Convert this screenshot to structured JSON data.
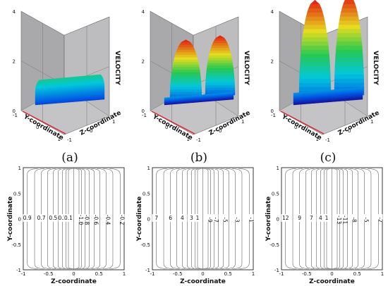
{
  "panels": [
    {
      "caption": "(a)",
      "surface": {
        "shape": "plateau",
        "peak": 1.0,
        "z_axis_label": "VELOCITY",
        "y_axis_label": "Y-coordinate",
        "x_axis_label": "Z-coordinate",
        "z_ticks": [
          "0",
          "2",
          "4"
        ],
        "y_ticks": [
          "-1",
          "0",
          "1"
        ],
        "x_ticks": [
          "-1",
          "0",
          "1"
        ]
      },
      "contour": {
        "y_label": "Y-coordinate",
        "x_label": "Z-coordinate",
        "x_ticks": [
          "-1",
          "-0.5",
          "0",
          "0.5",
          "1"
        ],
        "y_ticks": [
          "-1",
          "-0.5",
          "0",
          "0.5",
          "1"
        ],
        "labels": [
          "0.9",
          "0.7",
          "0.5",
          "0.3",
          "0.1",
          "-0.2",
          "-0.4",
          "-0.6",
          "-0.8",
          "-1.0"
        ]
      }
    },
    {
      "caption": "(b)",
      "surface": {
        "shape": "twin",
        "peak": 2.4,
        "z_axis_label": "VELOCITY",
        "y_axis_label": "Y-coordinate",
        "x_axis_label": "Z-coordinate",
        "z_ticks": [
          "0",
          "2",
          "4"
        ],
        "y_ticks": [
          "-1",
          "0",
          "1"
        ],
        "x_ticks": [
          "-1",
          "0",
          "1"
        ]
      },
      "contour": {
        "y_label": "Y-coordinate",
        "x_label": "Z-coordinate",
        "x_ticks": [
          "-1",
          "-0.5",
          "0",
          "0.5",
          "1"
        ],
        "y_ticks": [
          "-1",
          "-0.5",
          "0",
          "0.5",
          "1"
        ],
        "labels": [
          "7",
          "6",
          "4",
          "3",
          "1",
          "-1",
          "-3",
          "-5",
          "-7",
          "-9"
        ]
      }
    },
    {
      "caption": "(c)",
      "surface": {
        "shape": "twin",
        "peak": 4.0,
        "z_axis_label": "VELOCITY",
        "y_axis_label": "Y-coordinate",
        "x_axis_label": "Z-coordinate",
        "z_ticks": [
          "0",
          "2",
          "4"
        ],
        "y_ticks": [
          "-1",
          "0",
          "1"
        ],
        "x_ticks": [
          "-1",
          "0",
          "1"
        ]
      },
      "contour": {
        "y_label": "Y-coordinate",
        "x_label": "Z-coordinate",
        "x_ticks": [
          "-1",
          "-0.5",
          "0",
          "0.5",
          "1"
        ],
        "y_ticks": [
          "-1",
          "-0.5",
          "0",
          "0.5",
          "1"
        ],
        "labels": [
          "12",
          "9",
          "7",
          "4",
          "1",
          "-2",
          "-5",
          "-8",
          "-11",
          "-13"
        ]
      }
    }
  ]
}
